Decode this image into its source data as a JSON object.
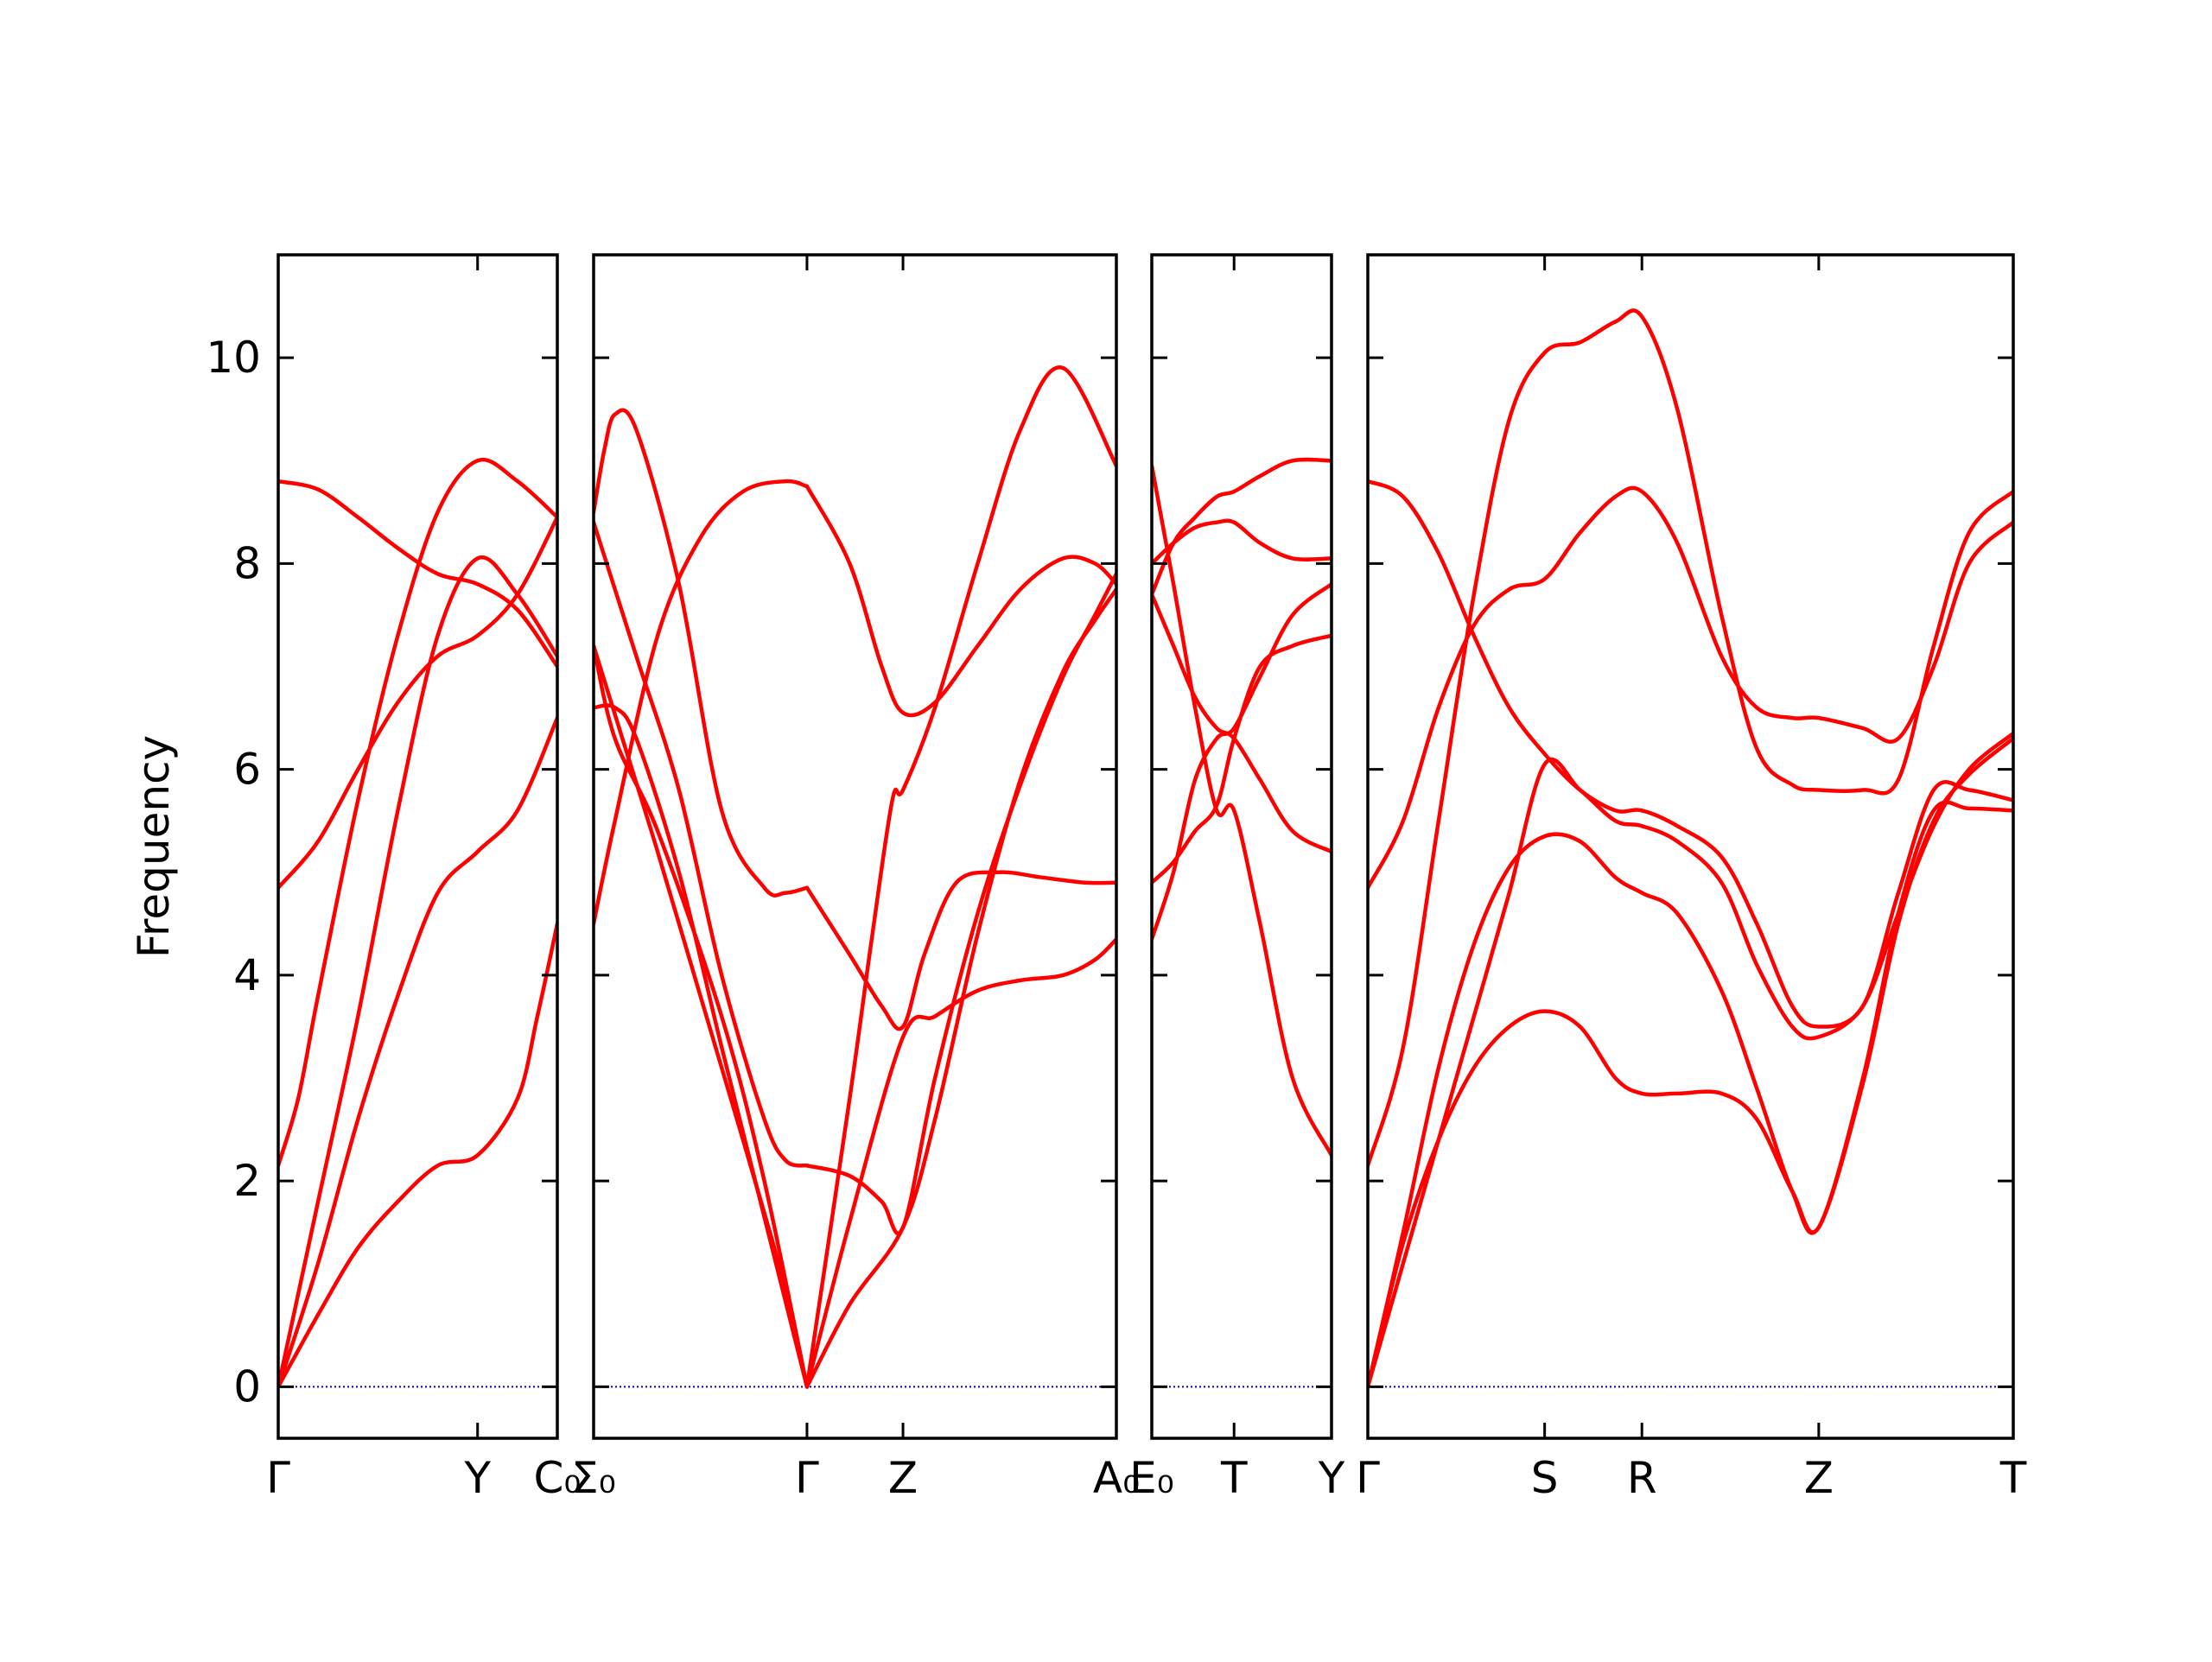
{
  "chart_data": {
    "type": "line",
    "ylabel": "Frequency",
    "ylim": [
      -0.5,
      11
    ],
    "yticks": [
      0,
      2,
      4,
      6,
      8,
      10
    ],
    "colors": {
      "bands": "#ff0000",
      "zero_line": "#0000cc",
      "axes": "#000000"
    },
    "grid": false,
    "panels": [
      {
        "id": "panel1",
        "xlim": [
          0,
          1.4
        ],
        "ticks": [
          {
            "x": 0,
            "label": "Γ"
          },
          {
            "x": 1.0,
            "label": "Y"
          },
          {
            "x": 1.4,
            "label": "C₀"
          }
        ],
        "series": [
          {
            "x": [
              0,
              0.2,
              0.4,
              0.6,
              0.8,
              1.0,
              1.2,
              1.4
            ],
            "y": [
              8.8,
              8.72,
              8.45,
              8.15,
              7.9,
              7.8,
              7.55,
              7.0
            ]
          },
          {
            "x": [
              0,
              0.2,
              0.4,
              0.6,
              0.8,
              1.0,
              1.2,
              1.4
            ],
            "y": [
              4.85,
              5.3,
              6.0,
              6.65,
              7.1,
              7.3,
              7.7,
              8.45
            ]
          },
          {
            "x": [
              0,
              0.1,
              0.2,
              0.4,
              0.6,
              0.8,
              1.0,
              1.2,
              1.4
            ],
            "y": [
              2.15,
              2.8,
              3.8,
              5.7,
              7.3,
              8.5,
              9.0,
              8.8,
              8.45
            ]
          },
          {
            "x": [
              0,
              0.2,
              0.4,
              0.6,
              0.8,
              1.0,
              1.2,
              1.4
            ],
            "y": [
              0.0,
              1.8,
              3.6,
              5.6,
              7.3,
              8.05,
              7.7,
              7.1
            ]
          },
          {
            "x": [
              0,
              0.2,
              0.4,
              0.6,
              0.8,
              1.0,
              1.2,
              1.4
            ],
            "y": [
              0.0,
              1.2,
              2.6,
              3.8,
              4.8,
              5.2,
              5.6,
              6.5
            ]
          },
          {
            "x": [
              0,
              0.2,
              0.4,
              0.6,
              0.8,
              1.0,
              1.2,
              1.3,
              1.4
            ],
            "y": [
              0.0,
              0.7,
              1.35,
              1.8,
              2.15,
              2.25,
              2.8,
              3.6,
              4.5
            ]
          }
        ]
      },
      {
        "id": "panel2",
        "xlim": [
          0,
          2.45
        ],
        "ticks": [
          {
            "x": 0,
            "label": "Σ₀"
          },
          {
            "x": 1.0,
            "label": "Γ"
          },
          {
            "x": 1.45,
            "label": "Z"
          },
          {
            "x": 2.45,
            "label": "A₀"
          }
        ],
        "series": [
          {
            "x": [
              0,
              0.1,
              0.3,
              0.5,
              0.7,
              0.9,
              1.0
            ],
            "y": [
              4.5,
              5.5,
              7.3,
              8.25,
              8.7,
              8.8,
              8.75
            ]
          },
          {
            "x": [
              1.0,
              1.2,
              1.35,
              1.45,
              1.6,
              1.8,
              2.0,
              2.2,
              2.35,
              2.45
            ],
            "y": [
              8.75,
              8.0,
              7.0,
              6.55,
              6.65,
              7.2,
              7.75,
              8.05,
              8.0,
              7.8
            ]
          },
          {
            "x": [
              0,
              0.05,
              0.1,
              0.2,
              0.4,
              0.6,
              0.8,
              0.9,
              1.0
            ],
            "y": [
              8.5,
              9.1,
              9.45,
              9.3,
              7.8,
              5.6,
              4.85,
              4.8,
              4.85
            ]
          },
          {
            "x": [
              1.0,
              1.2,
              1.35,
              1.45,
              1.55,
              1.7,
              1.9,
              2.1,
              2.3,
              2.45
            ],
            "y": [
              4.85,
              4.2,
              3.7,
              3.5,
              4.2,
              4.9,
              5.0,
              4.95,
              4.9,
              4.9
            ]
          },
          {
            "x": [
              0,
              0.2,
              0.4,
              0.6,
              0.8,
              0.9,
              1.0
            ],
            "y": [
              8.4,
              7.1,
              5.8,
              4.0,
              2.6,
              2.2,
              2.15
            ]
          },
          {
            "x": [
              1.0,
              1.2,
              1.35,
              1.45,
              1.6,
              1.8,
              2.0,
              2.2,
              2.35,
              2.45
            ],
            "y": [
              2.15,
              2.05,
              1.8,
              1.55,
              3.0,
              4.6,
              5.85,
              6.9,
              7.5,
              7.9
            ]
          },
          {
            "x": [
              0,
              0.1,
              0.3,
              0.6,
              0.8,
              1.0
            ],
            "y": [
              7.2,
              6.3,
              5.4,
              3.6,
              2.0,
              0.0
            ]
          },
          {
            "x": [
              0,
              0.1,
              0.2,
              0.4,
              0.6,
              0.8,
              1.0
            ],
            "y": [
              6.6,
              6.6,
              6.3,
              5.0,
              3.3,
              1.65,
              0.0
            ]
          },
          {
            "x": [
              0,
              0.15,
              0.3,
              0.5,
              0.7,
              0.9,
              1.0
            ],
            "y": [
              7.2,
              6.2,
              5.2,
              3.8,
              2.4,
              0.95,
              0.0
            ]
          },
          {
            "x": [
              1.0,
              1.2,
              1.3,
              1.4,
              1.45,
              1.6,
              1.8,
              2.0,
              2.2,
              2.45
            ],
            "y": [
              0.0,
              2.8,
              4.3,
              5.7,
              5.8,
              6.6,
              8.0,
              9.3,
              9.9,
              8.95
            ]
          },
          {
            "x": [
              1.0,
              1.2,
              1.45,
              1.6,
              1.8,
              2.0,
              2.2,
              2.35,
              2.45
            ],
            "y": [
              0.0,
              1.6,
              3.4,
              3.6,
              3.85,
              3.95,
              4.0,
              4.15,
              4.35
            ]
          },
          {
            "x": [
              1.0,
              1.2,
              1.45,
              1.6,
              1.8,
              2.0,
              2.2,
              2.35,
              2.45
            ],
            "y": [
              0.0,
              0.8,
              1.55,
              2.6,
              4.4,
              5.9,
              6.95,
              7.45,
              7.75
            ]
          }
        ]
      },
      {
        "id": "panel3",
        "xlim": [
          0,
          0.83
        ],
        "ticks": [
          {
            "x": 0,
            "label": "E₀"
          },
          {
            "x": 0.38,
            "label": "T"
          },
          {
            "x": 0.83,
            "label": "Y"
          }
        ],
        "series": [
          {
            "x": [
              0,
              0.1,
              0.2,
              0.3,
              0.38,
              0.5,
              0.65,
              0.83
            ],
            "y": [
              7.7,
              8.2,
              8.45,
              8.65,
              8.7,
              8.85,
              9.0,
              9.0
            ]
          },
          {
            "x": [
              0,
              0.1,
              0.2,
              0.3,
              0.38,
              0.5,
              0.65,
              0.83
            ],
            "y": [
              8.0,
              8.2,
              8.35,
              8.4,
              8.4,
              8.2,
              8.05,
              8.05
            ]
          },
          {
            "x": [
              0,
              0.1,
              0.2,
              0.3,
              0.38,
              0.5,
              0.65,
              0.83
            ],
            "y": [
              8.95,
              7.8,
              6.6,
              5.6,
              5.6,
              4.5,
              3.0,
              2.25
            ]
          },
          {
            "x": [
              0,
              0.1,
              0.2,
              0.3,
              0.38,
              0.5,
              0.65,
              0.83
            ],
            "y": [
              7.7,
              7.2,
              6.7,
              6.4,
              6.3,
              5.9,
              5.4,
              5.2
            ]
          },
          {
            "x": [
              0,
              0.1,
              0.2,
              0.3,
              0.38,
              0.5,
              0.65,
              0.83
            ],
            "y": [
              4.9,
              5.1,
              5.4,
              5.65,
              6.3,
              7.0,
              7.2,
              7.3
            ]
          },
          {
            "x": [
              0,
              0.1,
              0.2,
              0.3,
              0.38,
              0.5,
              0.65,
              0.83
            ],
            "y": [
              4.35,
              5.0,
              5.9,
              6.3,
              6.4,
              6.9,
              7.5,
              7.8
            ]
          }
        ]
      },
      {
        "id": "panel4",
        "xlim": [
          0,
          3.65
        ],
        "ticks": [
          {
            "x": 0,
            "label": "Γ"
          },
          {
            "x": 1.0,
            "label": "S"
          },
          {
            "x": 1.55,
            "label": "R"
          },
          {
            "x": 2.55,
            "label": "Z"
          },
          {
            "x": 3.65,
            "label": "T"
          }
        ],
        "series": [
          {
            "x": [
              0,
              0.2,
              0.4,
              0.6,
              0.8,
              1.0,
              1.2,
              1.4,
              1.55,
              1.75,
              2.0,
              2.2,
              2.4,
              2.55,
              2.8,
              3.0,
              3.2,
              3.4,
              3.65
            ],
            "y": [
              2.15,
              3.3,
              5.5,
              7.7,
              9.4,
              10.05,
              10.15,
              10.35,
              10.4,
              9.5,
              7.5,
              6.2,
              5.85,
              5.8,
              5.8,
              5.9,
              7.2,
              8.3,
              8.7
            ]
          },
          {
            "x": [
              0,
              0.2,
              0.4,
              0.6,
              0.8,
              1.0,
              1.2,
              1.4,
              1.55,
              1.75,
              2.0,
              2.2,
              2.4,
              2.55,
              2.8,
              3.0,
              3.2,
              3.4,
              3.65
            ],
            "y": [
              4.85,
              5.5,
              6.6,
              7.4,
              7.75,
              7.85,
              8.3,
              8.65,
              8.7,
              8.2,
              7.1,
              6.6,
              6.5,
              6.5,
              6.4,
              6.3,
              7.0,
              8.0,
              8.4
            ]
          },
          {
            "x": [
              0,
              0.2,
              0.4,
              0.6,
              0.8,
              1.0,
              1.2,
              1.4,
              1.55,
              1.75,
              2.0,
              2.2,
              2.4,
              2.55,
              2.8,
              3.0,
              3.2,
              3.4,
              3.65
            ],
            "y": [
              8.8,
              8.65,
              8.1,
              7.3,
              6.6,
              6.15,
              5.8,
              5.6,
              5.6,
              5.45,
              5.15,
              4.5,
              3.7,
              3.5,
              3.7,
              4.8,
              5.8,
              5.8,
              5.7
            ]
          },
          {
            "x": [
              0,
              0.2,
              0.4,
              0.6,
              0.8,
              1.0,
              1.2,
              1.4,
              1.55,
              1.75,
              2.0,
              2.2,
              2.4,
              2.55,
              2.8,
              3.0,
              3.2,
              3.4,
              3.65
            ],
            "y": [
              0.0,
              1.2,
              2.4,
              3.6,
              4.8,
              6.05,
              5.8,
              5.5,
              5.45,
              5.3,
              4.9,
              4.1,
              3.5,
              3.4,
              3.7,
              4.6,
              5.45,
              6.0,
              6.35
            ]
          },
          {
            "x": [
              0,
              0.2,
              0.4,
              0.6,
              0.8,
              1.0,
              1.2,
              1.4,
              1.55,
              1.75,
              2.0,
              2.2,
              2.4,
              2.55,
              2.8,
              3.0,
              3.2,
              3.4,
              3.65
            ],
            "y": [
              0.0,
              1.5,
              3.1,
              4.3,
              5.05,
              5.35,
              5.3,
              4.95,
              4.8,
              4.6,
              3.85,
              2.9,
              1.9,
              1.55,
              3.0,
              4.6,
              5.6,
              5.62,
              5.6
            ]
          },
          {
            "x": [
              0,
              0.2,
              0.4,
              0.6,
              0.8,
              1.0,
              1.2,
              1.4,
              1.55,
              1.75,
              2.0,
              2.2,
              2.4,
              2.55,
              2.8,
              3.0,
              3.2,
              3.4,
              3.65
            ],
            "y": [
              0.0,
              1.4,
              2.4,
              3.1,
              3.5,
              3.65,
              3.5,
              3.0,
              2.85,
              2.85,
              2.85,
              2.6,
              1.9,
              1.55,
              2.95,
              4.5,
              5.5,
              5.95,
              6.3
            ]
          }
        ]
      }
    ]
  }
}
